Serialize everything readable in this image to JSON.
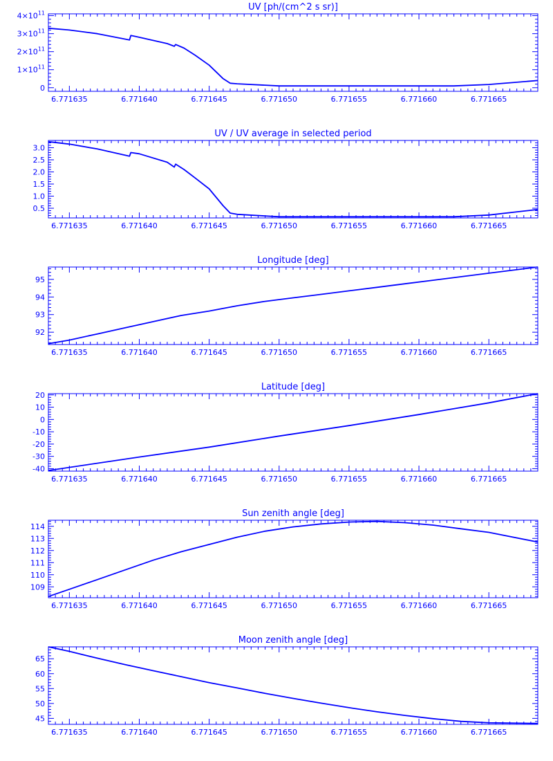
{
  "colors": {
    "foreground": "#0000ff",
    "background": "#ffffff"
  },
  "x_axis": {
    "ticks": [
      6.771635,
      6.77164,
      6.771645,
      6.77165,
      6.771655,
      6.77166,
      6.771665
    ],
    "tick_labels": [
      "6.771635",
      "6.771640",
      "6.771645",
      "6.771650",
      "6.771655",
      "6.771660",
      "6.771665"
    ],
    "xlim": [
      6.7716335,
      6.7716685
    ]
  },
  "chart_data": [
    {
      "type": "line",
      "title": "UV [ph/(cm^2 s sr)]",
      "ylim": [
        -20000000000.0,
        410000000000.0
      ],
      "y_ticks": [
        0,
        100000000000.0,
        200000000000.0,
        300000000000.0,
        400000000000.0
      ],
      "y_tick_labels": [
        {
          "mantissa": "0",
          "exponent": ""
        },
        {
          "mantissa": "1×10",
          "exponent": "11"
        },
        {
          "mantissa": "2×10",
          "exponent": "11"
        },
        {
          "mantissa": "3×10",
          "exponent": "11"
        },
        {
          "mantissa": "4×10",
          "exponent": "11"
        }
      ],
      "x": [
        6.7716335,
        6.771635,
        6.771637,
        6.7716393,
        6.7716394,
        6.77164,
        6.771642,
        6.7716425,
        6.7716426,
        6.7716432,
        6.771644,
        6.771645,
        6.771646,
        6.7716465,
        6.771647,
        6.77165,
        6.771655,
        6.77166,
        6.7716625,
        6.771665,
        6.7716685
      ],
      "y": [
        330000000000.0,
        320000000000.0,
        300000000000.0,
        265000000000.0,
        290000000000.0,
        280000000000.0,
        245000000000.0,
        230000000000.0,
        240000000000.0,
        220000000000.0,
        180000000000.0,
        125000000000.0,
        50000000000.0,
        25000000000.0,
        22000000000.0,
        10000000000.0,
        10000000000.0,
        10000000000.0,
        10000000000.0,
        18000000000.0,
        40000000000.0
      ]
    },
    {
      "type": "line",
      "title": "UV / UV average in selected period",
      "ylim": [
        0.1,
        3.3
      ],
      "y_ticks": [
        0.5,
        1.0,
        1.5,
        2.0,
        2.5,
        3.0
      ],
      "y_tick_labels": [
        "0.5",
        "1.0",
        "1.5",
        "2.0",
        "2.5",
        "3.0"
      ],
      "x": [
        6.7716335,
        6.771635,
        6.771637,
        6.7716393,
        6.7716394,
        6.77164,
        6.771642,
        6.7716425,
        6.7716426,
        6.7716432,
        6.771644,
        6.771645,
        6.771646,
        6.7716465,
        6.771647,
        6.77165,
        6.771655,
        6.77166,
        6.7716625,
        6.771665,
        6.7716685
      ],
      "y": [
        3.25,
        3.15,
        2.95,
        2.65,
        2.8,
        2.75,
        2.4,
        2.2,
        2.32,
        2.1,
        1.75,
        1.3,
        0.6,
        0.3,
        0.25,
        0.15,
        0.15,
        0.15,
        0.15,
        0.22,
        0.45
      ]
    },
    {
      "type": "line",
      "title": "Longitude [deg]",
      "ylim": [
        91.3,
        95.7
      ],
      "y_ticks": [
        92,
        93,
        94,
        95
      ],
      "y_tick_labels": [
        "92",
        "93",
        "94",
        "95"
      ],
      "x": [
        6.7716335,
        6.771635,
        6.771637,
        6.771639,
        6.771641,
        6.771643,
        6.771645,
        6.771647,
        6.771649,
        6.771651,
        6.771653,
        6.771655,
        6.771657,
        6.771659,
        6.771661,
        6.771663,
        6.771665,
        6.7716685
      ],
      "y": [
        91.35,
        91.55,
        91.9,
        92.25,
        92.6,
        92.95,
        93.2,
        93.5,
        93.75,
        93.95,
        94.15,
        94.35,
        94.55,
        94.75,
        94.95,
        95.15,
        95.35,
        95.7
      ]
    },
    {
      "type": "line",
      "title": "Latitude [deg]",
      "ylim": [
        -42,
        21
      ],
      "y_ticks": [
        -40,
        -30,
        -20,
        -10,
        0,
        10,
        20
      ],
      "y_tick_labels": [
        "-40",
        "-30",
        "-20",
        "-10",
        "0",
        "10",
        "20"
      ],
      "x": [
        6.7716335,
        6.77164,
        6.771645,
        6.77165,
        6.771655,
        6.77166,
        6.771665,
        6.7716685
      ],
      "y": [
        -41.5,
        -30.5,
        -22.5,
        -13.5,
        -5.0,
        4.0,
        13.5,
        21.0
      ]
    },
    {
      "type": "line",
      "title": "Sun zenith angle [deg]",
      "ylim": [
        108.1,
        114.5
      ],
      "y_ticks": [
        109,
        110,
        111,
        112,
        113,
        114
      ],
      "y_tick_labels": [
        "109",
        "110",
        "111",
        "112",
        "113",
        "114"
      ],
      "x": [
        6.7716335,
        6.771635,
        6.771637,
        6.771639,
        6.771641,
        6.771643,
        6.771645,
        6.771647,
        6.771649,
        6.771651,
        6.771653,
        6.771655,
        6.771657,
        6.771659,
        6.771661,
        6.771663,
        6.771665,
        6.7716685
      ],
      "y": [
        108.2,
        108.8,
        109.6,
        110.4,
        111.2,
        111.9,
        112.5,
        113.1,
        113.6,
        113.95,
        114.2,
        114.35,
        114.4,
        114.3,
        114.1,
        113.8,
        113.5,
        112.7
      ]
    },
    {
      "type": "line",
      "title": "Moon zenith angle [deg]",
      "ylim": [
        43,
        69
      ],
      "y_ticks": [
        45,
        50,
        55,
        60,
        65
      ],
      "y_tick_labels": [
        "45",
        "50",
        "55",
        "60",
        "65"
      ],
      "x": [
        6.7716335,
        6.771635,
        6.771637,
        6.771639,
        6.771641,
        6.771643,
        6.771645,
        6.771647,
        6.771649,
        6.771651,
        6.771653,
        6.771655,
        6.771657,
        6.771659,
        6.771661,
        6.771663,
        6.771665,
        6.7716685
      ],
      "y": [
        69.0,
        67.5,
        65.2,
        63.0,
        61.0,
        59.0,
        57.0,
        55.2,
        53.4,
        51.7,
        50.1,
        48.6,
        47.2,
        46.0,
        44.9,
        44.0,
        43.5,
        43.3
      ]
    }
  ]
}
